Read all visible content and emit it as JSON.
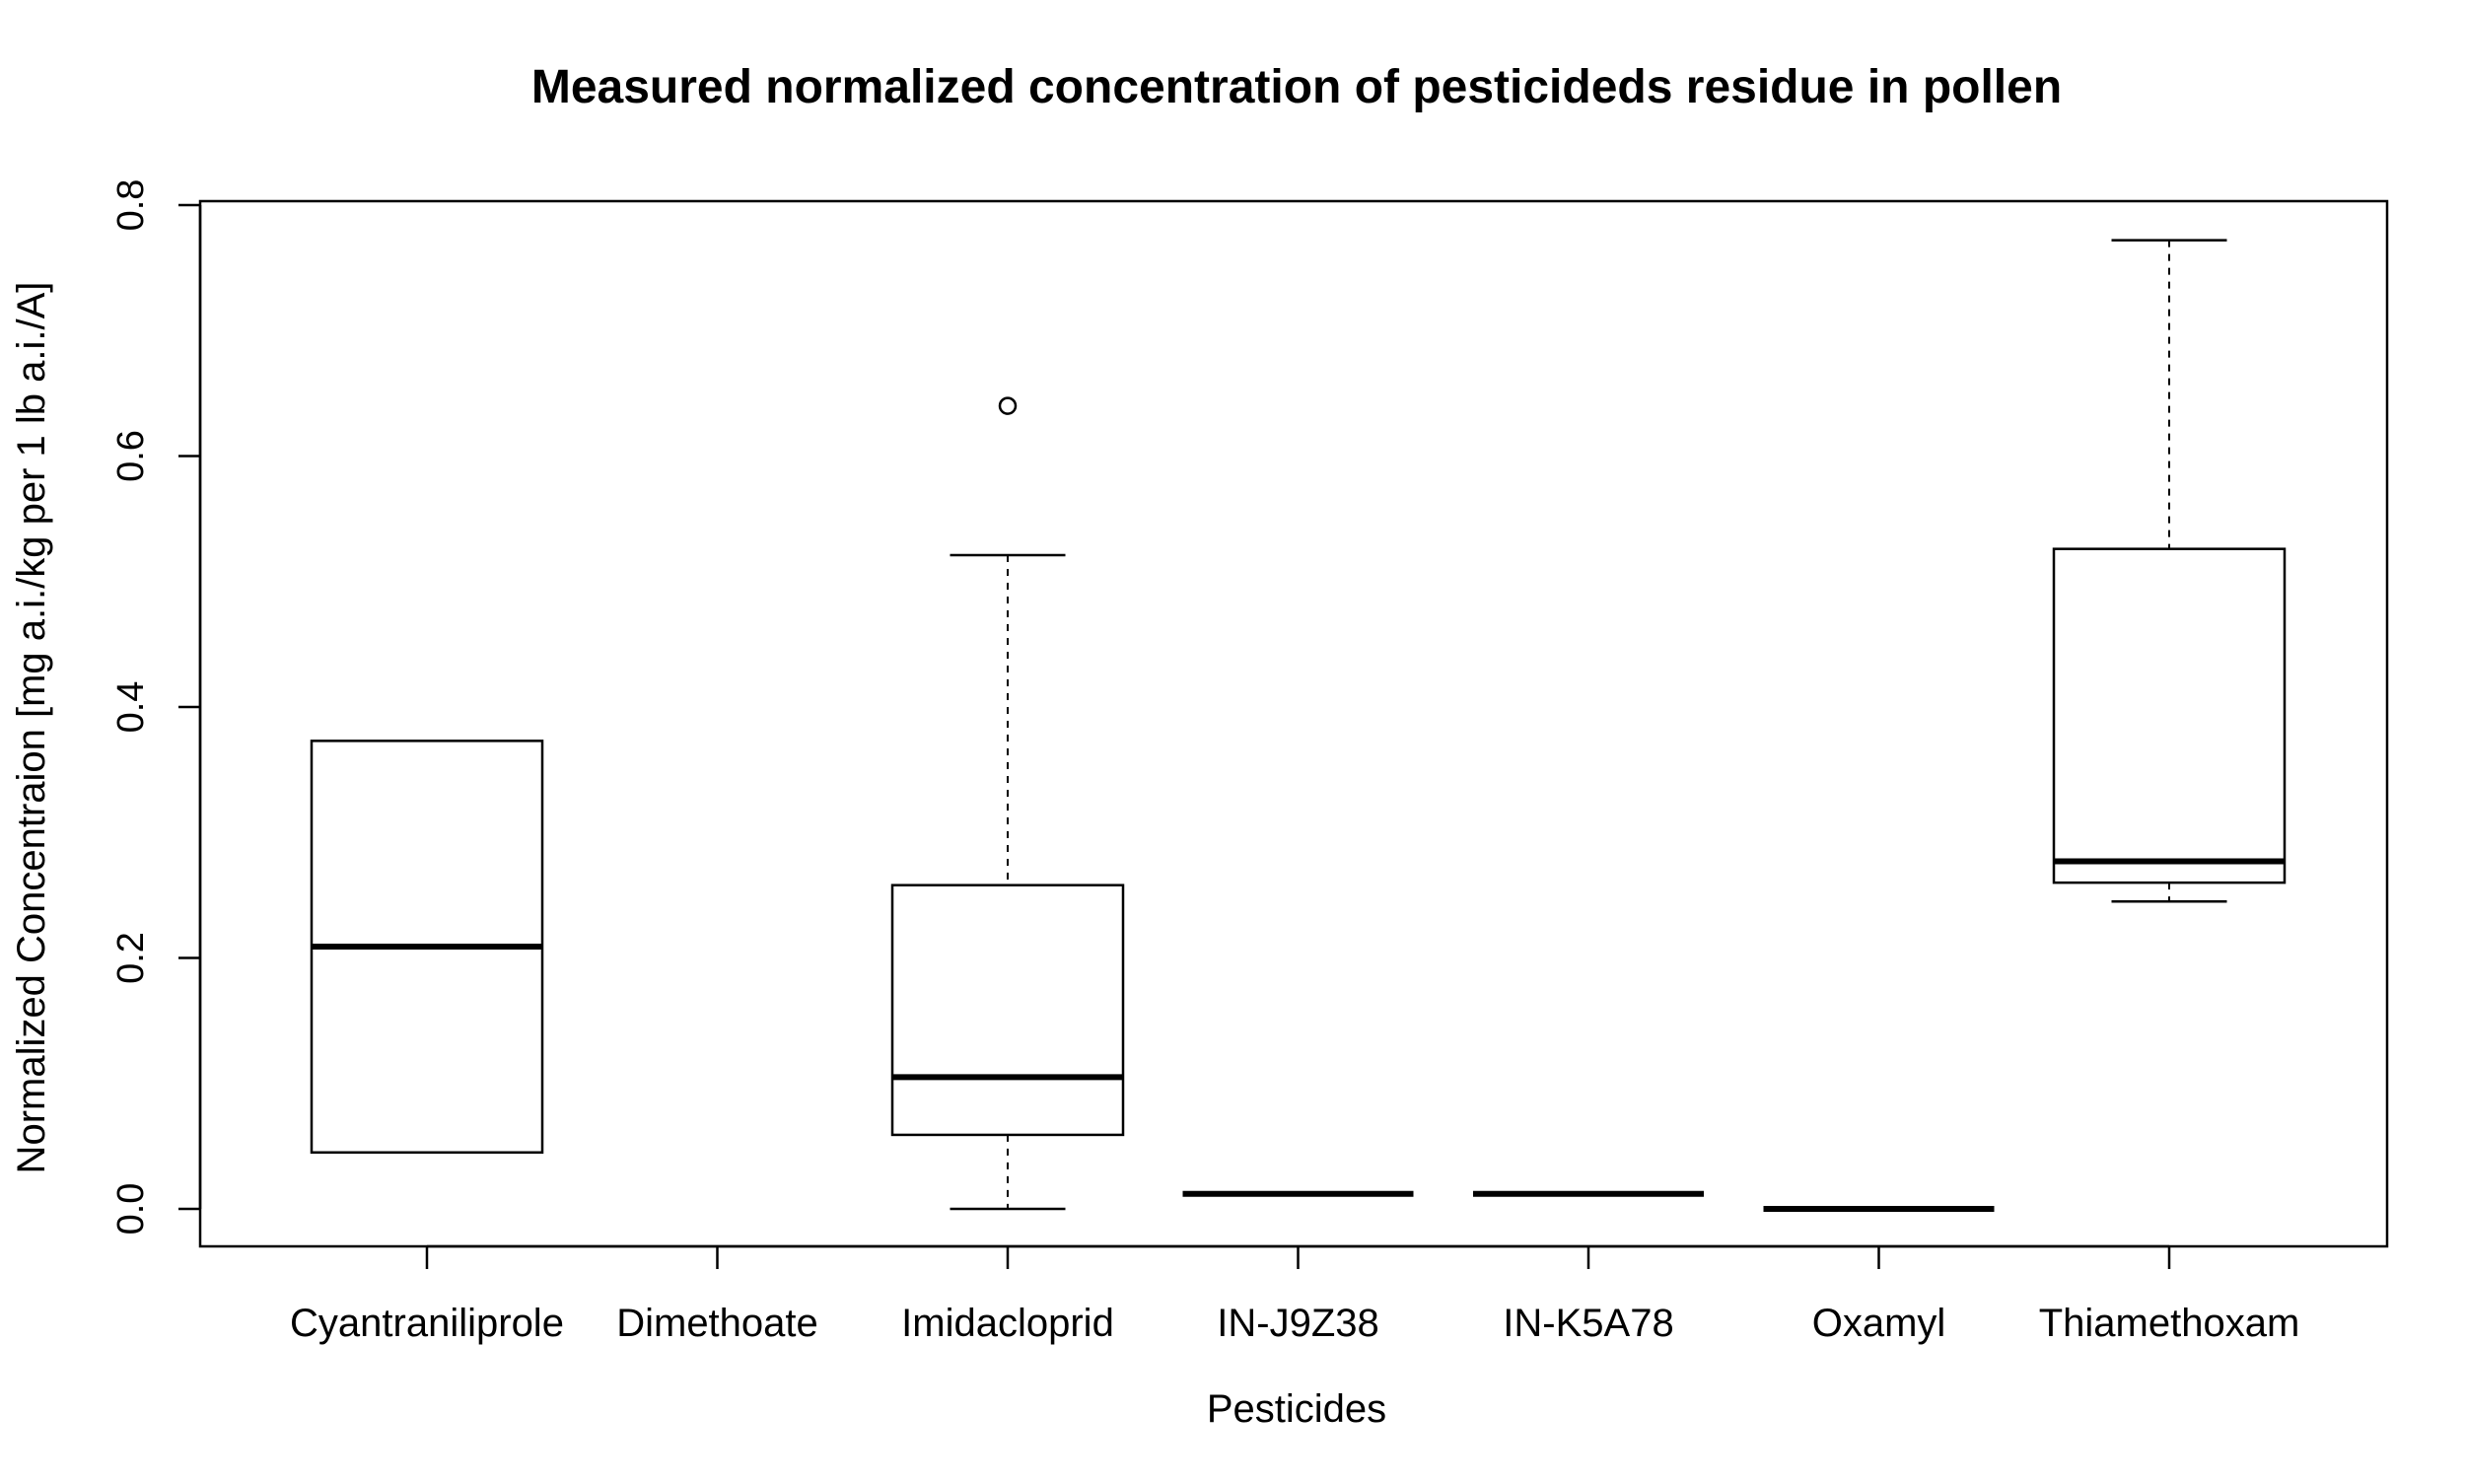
{
  "chart_data": {
    "type": "boxplot",
    "title": "Measured normalized concentration of pesticideds residue in pollen",
    "xlabel": "Pesticides",
    "ylabel": "Normalized Concentraion [mg a.i./kg per 1 lb a.i./A]",
    "ylim": [
      -0.03,
      0.805
    ],
    "yticks": [
      0.0,
      0.2,
      0.4,
      0.6,
      0.8
    ],
    "ytick_labels": [
      "0.0",
      "0.2",
      "0.4",
      "0.6",
      "0.8"
    ],
    "grid": false,
    "categories": [
      "Cyantraniliprole",
      "Dimethoate",
      "Imidacloprid",
      "IN-J9Z38",
      "IN-K5A78",
      "Oxamyl",
      "Thiamethoxam"
    ],
    "boxes": [
      {
        "category": "Cyantraniliprole",
        "whisker_low": 0.045,
        "q1": 0.045,
        "median": 0.209,
        "q3": 0.373,
        "whisker_high": 0.373,
        "outliers": []
      },
      {
        "category": "Dimethoate",
        "whisker_low": null,
        "q1": null,
        "median": null,
        "q3": null,
        "whisker_high": null,
        "outliers": []
      },
      {
        "category": "Imidacloprid",
        "whisker_low": 0.0,
        "q1": 0.059,
        "median": 0.105,
        "q3": 0.258,
        "whisker_high": 0.521,
        "outliers": [
          0.64
        ]
      },
      {
        "category": "IN-J9Z38",
        "whisker_low": 0.012,
        "q1": 0.012,
        "median": 0.012,
        "q3": 0.012,
        "whisker_high": 0.012,
        "outliers": []
      },
      {
        "category": "IN-K5A78",
        "whisker_low": 0.012,
        "q1": 0.012,
        "median": 0.012,
        "q3": 0.012,
        "whisker_high": 0.012,
        "outliers": []
      },
      {
        "category": "Oxamyl",
        "whisker_low": 0.0,
        "q1": 0.0,
        "median": 0.0,
        "q3": 0.0,
        "whisker_high": 0.0,
        "outliers": []
      },
      {
        "category": "Thiamethoxam",
        "whisker_low": 0.245,
        "q1": 0.26,
        "median": 0.277,
        "q3": 0.526,
        "whisker_high": 0.772,
        "outliers": []
      }
    ]
  }
}
